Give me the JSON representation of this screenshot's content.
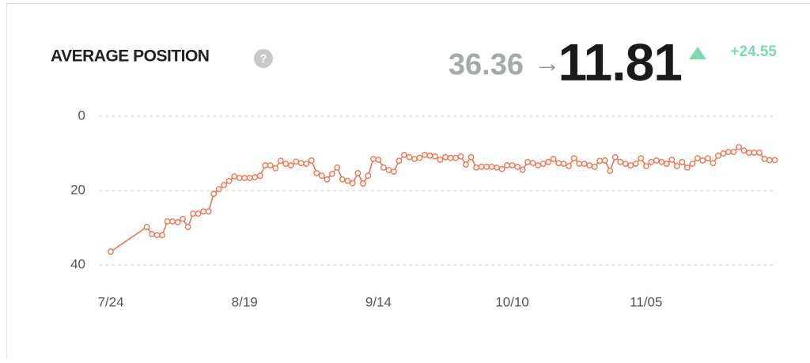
{
  "header": {
    "title": "AVERAGE POSITION",
    "help_icon": "?",
    "from": "36.36",
    "arrow": "→",
    "to": "11.81",
    "change": "+24.55"
  },
  "chart_data": {
    "type": "line",
    "color": "#f07450",
    "y_inverted": true,
    "grid": true,
    "ylim": [
      0,
      40
    ],
    "yticks": [
      0,
      20,
      40
    ],
    "xlim": [
      "7/22",
      "12/1"
    ],
    "xticks": [
      "7/24",
      "8/19",
      "9/14",
      "10/10",
      "11/05"
    ],
    "x": [
      "7/24",
      "7/31",
      "8/1",
      "8/2",
      "8/3",
      "8/4",
      "8/5",
      "8/6",
      "8/7",
      "8/8",
      "8/9",
      "8/10",
      "8/11",
      "8/12",
      "8/13",
      "8/14",
      "8/15",
      "8/16",
      "8/17",
      "8/18",
      "8/19",
      "8/20",
      "8/21",
      "8/22",
      "8/23",
      "8/24",
      "8/25",
      "8/26",
      "8/27",
      "8/28",
      "8/29",
      "8/30",
      "8/31",
      "9/1",
      "9/2",
      "9/3",
      "9/4",
      "9/5",
      "9/6",
      "9/7",
      "9/8",
      "9/9",
      "9/10",
      "9/11",
      "9/12",
      "9/13",
      "9/14",
      "9/15",
      "9/16",
      "9/17",
      "9/18",
      "9/19",
      "9/20",
      "9/21",
      "9/22",
      "9/23",
      "9/24",
      "9/25",
      "9/26",
      "9/27",
      "9/28",
      "9/29",
      "9/30",
      "10/1",
      "10/2",
      "10/3",
      "10/4",
      "10/5",
      "10/6",
      "10/7",
      "10/8",
      "10/9",
      "10/10",
      "10/11",
      "10/12",
      "10/13",
      "10/14",
      "10/15",
      "10/16",
      "10/17",
      "10/18",
      "10/19",
      "10/20",
      "10/21",
      "10/22",
      "10/23",
      "10/24",
      "10/25",
      "10/26",
      "10/27",
      "10/28",
      "10/29",
      "10/30",
      "10/31",
      "11/1",
      "11/2",
      "11/3",
      "11/4",
      "11/5",
      "11/6",
      "11/7",
      "11/8",
      "11/9",
      "11/10",
      "11/11",
      "11/12",
      "11/13",
      "11/14",
      "11/15",
      "11/16",
      "11/17",
      "11/18",
      "11/19",
      "11/20",
      "11/21",
      "11/22",
      "11/23",
      "11/24",
      "11/25",
      "11/26",
      "11/27",
      "11/28",
      "11/29",
      "11/30"
    ],
    "values": [
      36.4,
      29.8,
      31.7,
      32,
      32,
      28.3,
      28.3,
      28.5,
      27.6,
      29.8,
      26.2,
      26.2,
      25.6,
      25.6,
      20.9,
      19.6,
      18.5,
      17.4,
      16.2,
      16.6,
      16.6,
      16.6,
      16.4,
      16,
      13.2,
      13.2,
      14,
      12,
      12.8,
      13.2,
      12.2,
      12.6,
      12.8,
      11.9,
      15.3,
      16,
      17,
      15.5,
      13.8,
      17,
      17.4,
      18,
      15.3,
      18.1,
      16,
      11.5,
      11.7,
      13.8,
      14.5,
      14.9,
      12,
      10.4,
      11,
      11.5,
      11.2,
      10.4,
      10.6,
      10.8,
      11.7,
      11,
      11.2,
      11.2,
      10.8,
      13,
      11,
      13.8,
      13.6,
      13.6,
      13.6,
      13.8,
      14.2,
      13.2,
      13.2,
      13.6,
      14.4,
      12.3,
      12.6,
      13.2,
      12.8,
      12.3,
      11.5,
      12.6,
      12.8,
      13.4,
      11.3,
      12.8,
      12.8,
      13.2,
      13.6,
      12,
      11.9,
      14.7,
      11,
      12.3,
      12.8,
      13.2,
      12.8,
      11.3,
      13.4,
      12.3,
      11.9,
      12.3,
      12.8,
      11.7,
      13.4,
      12.3,
      13.8,
      12.8,
      11.3,
      11.9,
      11.3,
      12.6,
      10.6,
      10,
      9.6,
      9.6,
      8.3,
      9.2,
      9.8,
      9.8,
      9.8,
      11.5,
      11.8,
      11.81
    ]
  }
}
